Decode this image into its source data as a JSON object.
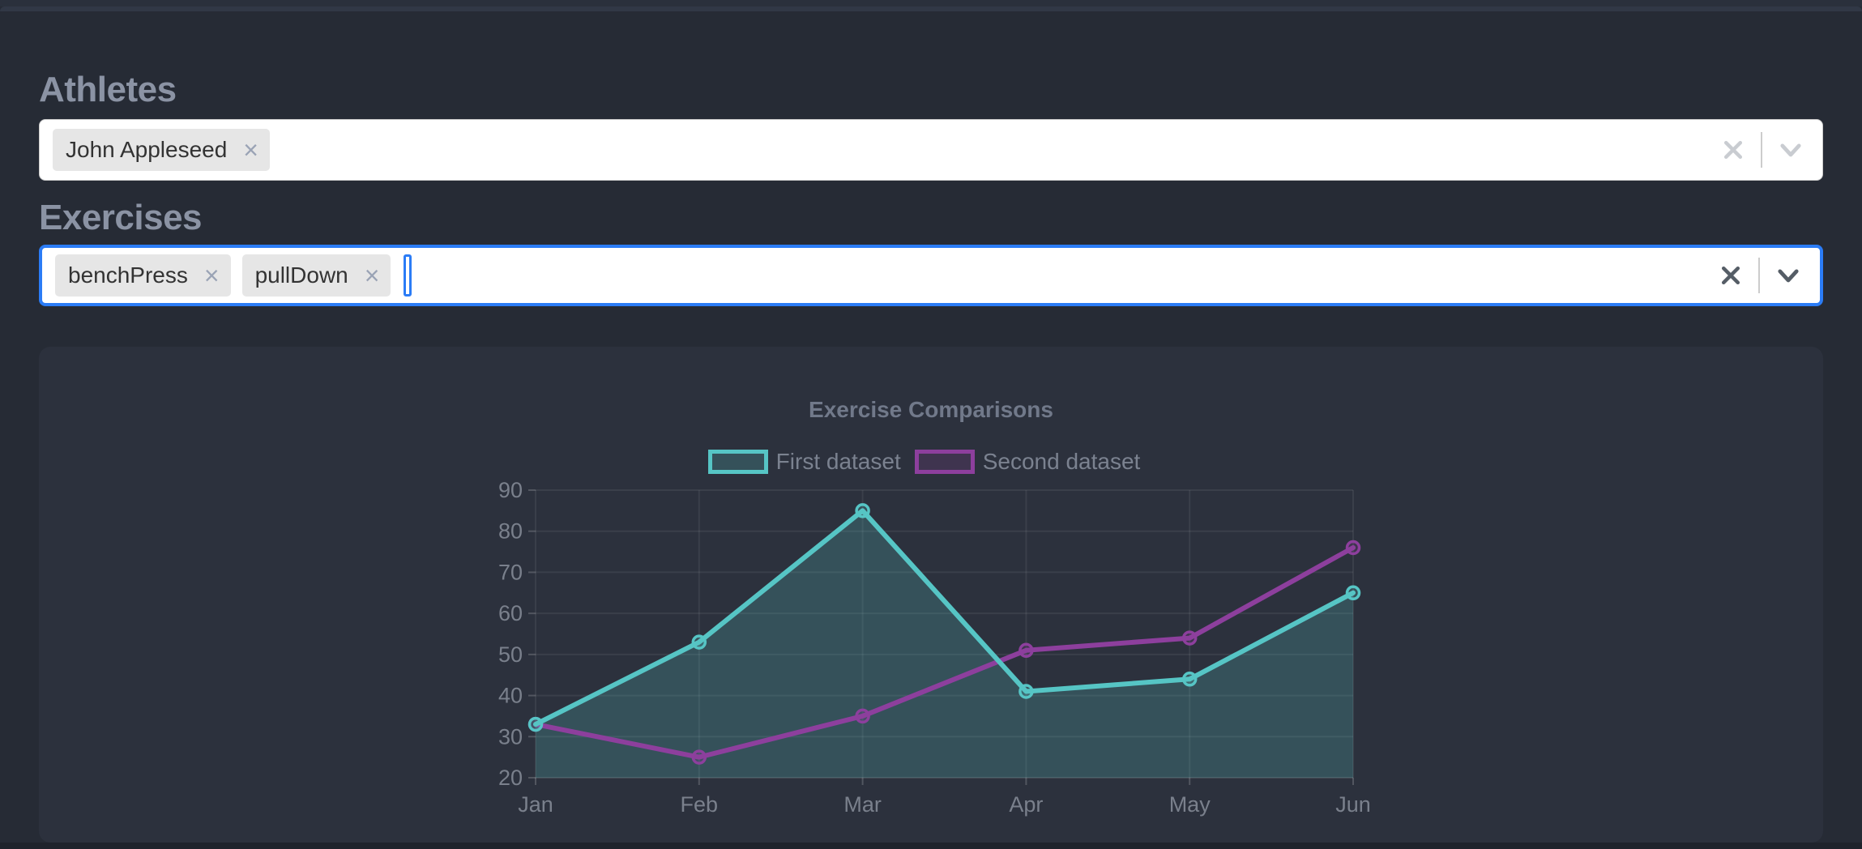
{
  "page": {
    "athletes_label": "Athletes",
    "exercises_label": "Exercises"
  },
  "athletes_select": {
    "selected": [
      "John Appleseed"
    ]
  },
  "exercises_select": {
    "selected": [
      "benchPress",
      "pullDown"
    ]
  },
  "icons": {
    "tag_remove": "×"
  },
  "colors": {
    "focus_blue": "#2b7cf6",
    "icon_muted": "#c9ccd1",
    "icon_active": "#555d66",
    "page_bg": "#262b35",
    "card_bg": "#2c313d",
    "heading_text": "#8b93a4",
    "chart_text": "#7a808c"
  },
  "chart_data": {
    "type": "line",
    "title": "Exercise Comparisons",
    "categories": [
      "Jan",
      "Feb",
      "Mar",
      "Apr",
      "May",
      "Jun"
    ],
    "series": [
      {
        "name": "First dataset",
        "color": "#56c5c5",
        "bg": "rgba(86,197,197,0.22)",
        "fill": true,
        "values": [
          33,
          53,
          85,
          41,
          44,
          65
        ]
      },
      {
        "name": "Second dataset",
        "color": "#8d3f9d",
        "bg": "rgba(141,63,157,0.20)",
        "fill": false,
        "values": [
          33,
          25,
          35,
          51,
          54,
          76
        ]
      }
    ],
    "ylim": [
      20,
      90
    ],
    "yticks": [
      20,
      30,
      40,
      50,
      60,
      70,
      80,
      90
    ],
    "grid": true,
    "legend_position": "top"
  }
}
